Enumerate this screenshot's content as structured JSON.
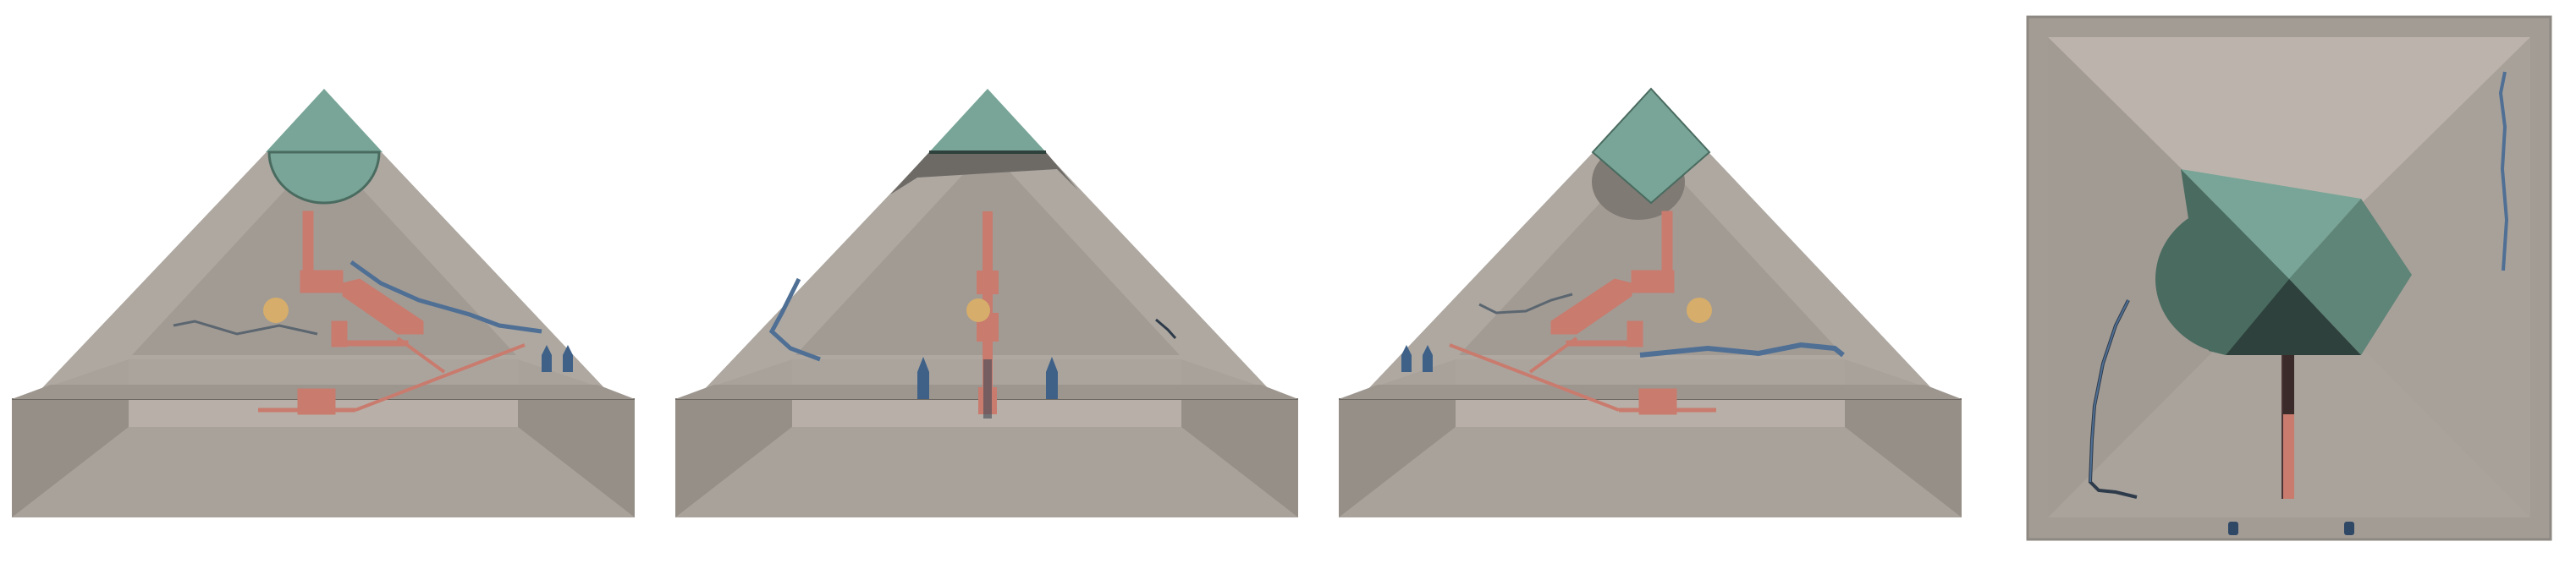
{
  "figure": {
    "description_panels": [
      "front-view",
      "side-view",
      "back-view",
      "top-view"
    ],
    "colors": {
      "background": "#ffffff",
      "stone_light": "#bcb4ac",
      "stone_mid": "#aaa39c",
      "stone_dark": "#958f88",
      "stone_shadow": "#7e7872",
      "capstone": "#78a597",
      "capstone_dark": "#4a6b60",
      "capstone_darker": "#2e413c",
      "passage": "#c97b6e",
      "crack": "#4f6f94",
      "crack_dark": "#2e3b4a",
      "sphere": "#d6ad6a",
      "marker": "#3f6188"
    }
  }
}
